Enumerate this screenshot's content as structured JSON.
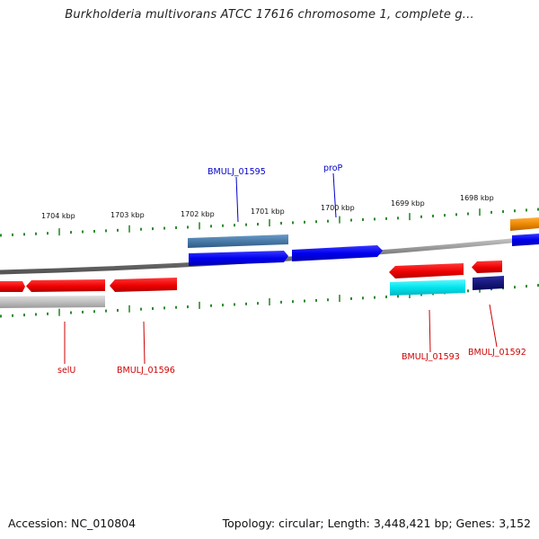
{
  "title": "Burkholderia multivorans ATCC 17616 chromosome 1, complete g...",
  "footer": {
    "accession": "Accession: NC_010804",
    "summary": "Topology: circular; Length: 3,448,421 bp; Genes: 3,152"
  },
  "scale_labels": [
    "1704 kbp",
    "1703 kbp",
    "1702 kbp",
    "1701 kbp",
    "1700 kbp",
    "1699 kbp",
    "1698 kbp"
  ],
  "gene_labels": [
    {
      "text": "BMULJ_01595",
      "color": "#0000cc"
    },
    {
      "text": "proP",
      "color": "#0000cc"
    },
    {
      "text": "selU",
      "color": "#cc0000"
    },
    {
      "text": "BMULJ_01596",
      "color": "#cc0000"
    },
    {
      "text": "BMULJ_01593",
      "color": "#cc0000"
    },
    {
      "text": "BMULJ_01592",
      "color": "#cc0000"
    }
  ],
  "colors": {
    "backbone": "#8a8a8a",
    "ticks": "#2e8b2e",
    "forward_cds": "#0000ee",
    "reverse_cds": "#ee0000",
    "steelblue_feature": "#4a7aa8",
    "cyan_feature": "#00e5ee",
    "navy_feature": "#0a0a80",
    "gray_feature": "#c0c0c0",
    "orange_feature": "#ee8800"
  }
}
